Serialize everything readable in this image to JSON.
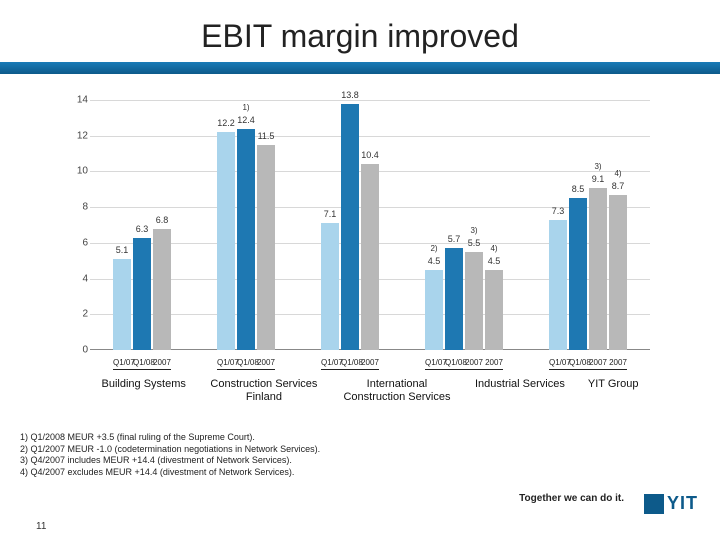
{
  "title": "EBIT margin improved",
  "chart": {
    "ylim": [
      0,
      14
    ],
    "ytick_step": 2,
    "grid_color": "#d8d8d8",
    "bar_colors": {
      "q1_07": "#a9d4ec",
      "q1_08": "#1e78b2",
      "y2007": "#b8b8b8",
      "y2007_alt": "#b8b8b8"
    },
    "groups": [
      {
        "name": "Building Systems",
        "bars": [
          {
            "key": "q1_07",
            "value": 5.1,
            "label": "5.1"
          },
          {
            "key": "q1_08",
            "value": 6.3,
            "label": "6.3"
          },
          {
            "key": "y2007",
            "value": 6.8,
            "label": "6.8"
          }
        ]
      },
      {
        "name": "Construction Services Finland",
        "bars": [
          {
            "key": "q1_07",
            "value": 12.2,
            "label": "12.2"
          },
          {
            "key": "q1_08",
            "value": 12.4,
            "label": "12.4",
            "footnote": "1)"
          },
          {
            "key": "y2007",
            "value": 11.5,
            "label": "11.5"
          }
        ]
      },
      {
        "name": "International Construction Services",
        "bars": [
          {
            "key": "q1_07",
            "value": 7.1,
            "label": "7.1"
          },
          {
            "key": "q1_08",
            "value": 13.8,
            "label": "13.8"
          },
          {
            "key": "y2007",
            "value": 10.4,
            "label": "10.4"
          }
        ]
      },
      {
        "name": "Industrial Services",
        "bars": [
          {
            "key": "q1_07",
            "value": 4.5,
            "label": "4.5",
            "footnote": "2)"
          },
          {
            "key": "q1_08",
            "value": 5.7,
            "label": "5.7"
          },
          {
            "key": "y2007",
            "value": 5.5,
            "label": "5.5",
            "footnote": "3)"
          },
          {
            "key": "y2007_alt",
            "value": 4.5,
            "label": "4.5",
            "footnote": "4)"
          }
        ]
      },
      {
        "name": "YIT Group",
        "bars": [
          {
            "key": "q1_07",
            "value": 7.3,
            "label": "7.3"
          },
          {
            "key": "q1_08",
            "value": 8.5,
            "label": "8.5"
          },
          {
            "key": "y2007",
            "value": 9.1,
            "label": "9.1",
            "footnote": "3)"
          },
          {
            "key": "y2007_alt",
            "value": 8.7,
            "label": "8.7",
            "footnote": "4)"
          }
        ]
      }
    ],
    "x_tick_labels": {
      "q1_07": "Q1/07",
      "q1_08": "Q1/08",
      "y2007": "2007",
      "y2007_alt": "2007"
    }
  },
  "footnotes": [
    "1) Q1/2008 MEUR +3.5 (final ruling of the Supreme Court).",
    "2) Q1/2007 MEUR -1.0 (codetermination negotiations in Network Services).",
    "3) Q4/2007 includes MEUR +14.4 (divestment of Network Services).",
    "4) Q4/2007 excludes MEUR +14.4 (divestment of Network Services)."
  ],
  "tagline": "Together we can do it.",
  "logo_text": "YIT",
  "page_number": "11"
}
